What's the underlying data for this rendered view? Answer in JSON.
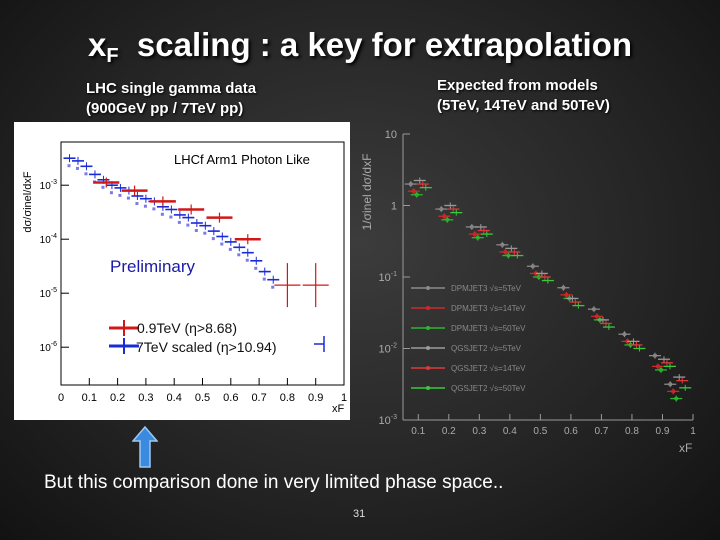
{
  "slide": {
    "title_main": "x",
    "title_sub": "F",
    "title_rest": "  scaling : a key for extrapolation",
    "caption_left": [
      "LHC single gamma data",
      "(900GeV pp / 7TeV pp)"
    ],
    "caption_right": [
      "Expected from models",
      "(5TeV, 14TeV and 50TeV)"
    ],
    "bottom_text": "But this comparison done in very limited phase space..",
    "page_number": "31",
    "arrow_color": "#3a8ae0"
  },
  "chart_data": [
    {
      "type": "scatter",
      "title": "LHCf Arm1 Photon Like",
      "xlabel": "xF",
      "ylabel": "dσ/σinel/dxF",
      "annotation": "Preliminary",
      "xlim": [
        0,
        1
      ],
      "ylim_log10": [
        -6.7,
        -2.2
      ],
      "x_ticks": [
        "0",
        "0.1",
        "0.2",
        "0.3",
        "0.4",
        "0.5",
        "0.6",
        "0.7",
        "0.8",
        "0.9",
        "1"
      ],
      "y_ticks": [
        {
          "base": "10",
          "exp": "-3",
          "log": -3
        },
        {
          "base": "10",
          "exp": "-4",
          "log": -4
        },
        {
          "base": "10",
          "exp": "-5",
          "log": -5
        },
        {
          "base": "10",
          "exp": "-6",
          "log": -6
        }
      ],
      "legend_placement": "bottom-left",
      "series": [
        {
          "name": "0.9TeV (η>8.68)",
          "color": "#d01818",
          "points": [
            {
              "x": 0.16,
              "y": -2.95
            },
            {
              "x": 0.26,
              "y": -3.1
            },
            {
              "x": 0.36,
              "y": -3.3
            },
            {
              "x": 0.46,
              "y": -3.45
            },
            {
              "x": 0.56,
              "y": -3.6
            },
            {
              "x": 0.66,
              "y": -4.0
            },
            {
              "x": 0.8,
              "y": -4.85
            },
            {
              "x": 0.9,
              "y": -4.85
            }
          ]
        },
        {
          "name": "7TeV scaled (η>10.94)",
          "color": "#1a2ad8",
          "points": [
            {
              "x": 0.03,
              "y": -2.5
            },
            {
              "x": 0.06,
              "y": -2.55
            },
            {
              "x": 0.09,
              "y": -2.65
            },
            {
              "x": 0.12,
              "y": -2.8
            },
            {
              "x": 0.15,
              "y": -2.9
            },
            {
              "x": 0.18,
              "y": -3.0
            },
            {
              "x": 0.21,
              "y": -3.05
            },
            {
              "x": 0.24,
              "y": -3.1
            },
            {
              "x": 0.27,
              "y": -3.2
            },
            {
              "x": 0.3,
              "y": -3.25
            },
            {
              "x": 0.33,
              "y": -3.3
            },
            {
              "x": 0.36,
              "y": -3.4
            },
            {
              "x": 0.39,
              "y": -3.45
            },
            {
              "x": 0.42,
              "y": -3.55
            },
            {
              "x": 0.45,
              "y": -3.6
            },
            {
              "x": 0.48,
              "y": -3.7
            },
            {
              "x": 0.51,
              "y": -3.75
            },
            {
              "x": 0.54,
              "y": -3.85
            },
            {
              "x": 0.57,
              "y": -3.95
            },
            {
              "x": 0.6,
              "y": -4.05
            },
            {
              "x": 0.63,
              "y": -4.15
            },
            {
              "x": 0.66,
              "y": -4.25
            },
            {
              "x": 0.69,
              "y": -4.4
            },
            {
              "x": 0.72,
              "y": -4.6
            },
            {
              "x": 0.75,
              "y": -4.75
            }
          ]
        }
      ]
    },
    {
      "type": "scatter",
      "xlabel": "xF",
      "ylabel": "1/σinel dσ/dxF",
      "xlim": [
        0,
        1
      ],
      "ylim_log10": [
        -3,
        1
      ],
      "x_ticks": [
        "0.1",
        "0.2",
        "0.3",
        "0.4",
        "0.5",
        "0.6",
        "0.7",
        "0.8",
        "0.9",
        "1"
      ],
      "y_ticks": [
        {
          "base": "10",
          "exp": "",
          "log": 1
        },
        {
          "base": "1",
          "exp": "",
          "log": 0
        },
        {
          "base": "10",
          "exp": "-1",
          "log": -1
        },
        {
          "base": "10",
          "exp": "-2",
          "log": -2
        },
        {
          "base": "10",
          "exp": "-3",
          "log": -3
        }
      ],
      "legend_placement": "center-left",
      "series": [
        {
          "name": "DPMJET3 √s=5TeV",
          "color": "#8a8a8a",
          "y": [
            0.3,
            -0.05,
            -0.3,
            -0.55,
            -0.85,
            -1.15,
            -1.45,
            -1.8,
            -2.1,
            -2.5
          ]
        },
        {
          "name": "DPMJET3 √s=14TeV",
          "color": "#d02828",
          "y": [
            0.2,
            -0.15,
            -0.4,
            -0.65,
            -0.95,
            -1.25,
            -1.55,
            -1.9,
            -2.25,
            -2.6
          ]
        },
        {
          "name": "DPMJET3 √s=50TeV",
          "color": "#2ab82a",
          "y": [
            0.15,
            -0.2,
            -0.45,
            -0.7,
            -1.0,
            -1.3,
            -1.6,
            -1.95,
            -2.3,
            -2.7
          ]
        },
        {
          "name": "QGSJET2 √s=5TeV",
          "color": "#9a9a9a",
          "y": [
            0.35,
            0.0,
            -0.3,
            -0.6,
            -0.95,
            -1.3,
            -1.6,
            -1.9,
            -2.15,
            -2.4
          ]
        },
        {
          "name": "QGSJET2 √s=14TeV",
          "color": "#e03838",
          "y": [
            0.3,
            -0.05,
            -0.35,
            -0.65,
            -1.0,
            -1.35,
            -1.65,
            -1.95,
            -2.2,
            -2.45
          ]
        },
        {
          "name": "QGSJET2 √s=50TeV",
          "color": "#3ac83a",
          "y": [
            0.25,
            -0.1,
            -0.4,
            -0.7,
            -1.05,
            -1.4,
            -1.7,
            -2.0,
            -2.25,
            -2.55
          ]
        }
      ],
      "x": [
        0.1,
        0.2,
        0.3,
        0.4,
        0.5,
        0.6,
        0.7,
        0.8,
        0.9,
        0.95
      ]
    }
  ]
}
